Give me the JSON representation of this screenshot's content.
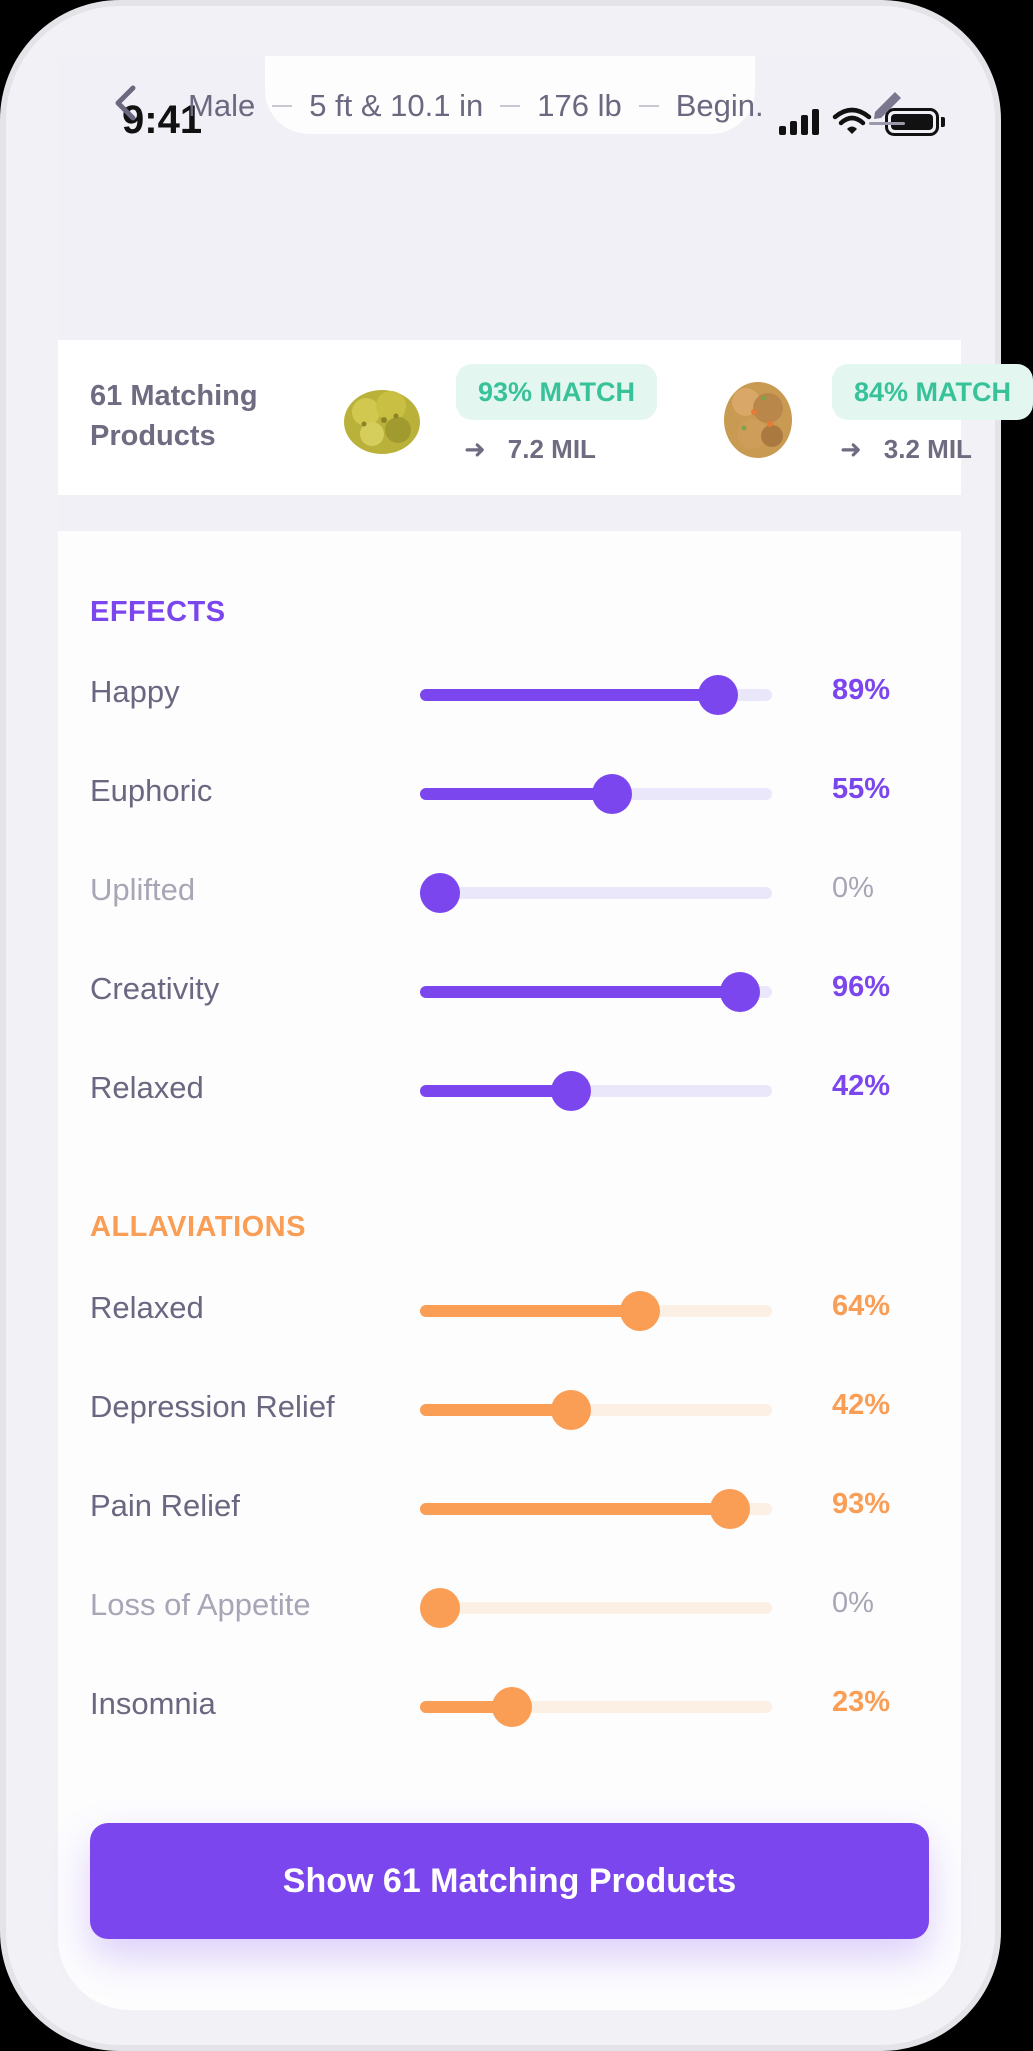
{
  "status_bar": {
    "time": "9:41"
  },
  "header": {
    "profile": [
      "Male",
      "5 ft & 10.1 in",
      "176 lb",
      "Begin."
    ]
  },
  "matches": {
    "label": "61 Matching Products",
    "products": [
      {
        "match": "93% MATCH",
        "distance": "7.2 MIL"
      },
      {
        "match": "84% MATCH",
        "distance": "3.2 MIL"
      }
    ]
  },
  "effects": {
    "title": "EFFECTS",
    "color": "#7b46ee",
    "items": [
      {
        "label": "Happy",
        "value": 89,
        "display": "89%"
      },
      {
        "label": "Euphoric",
        "value": 55,
        "display": "55%"
      },
      {
        "label": "Uplifted",
        "value": 0,
        "display": "0%"
      },
      {
        "label": "Creativity",
        "value": 96,
        "display": "96%"
      },
      {
        "label": "Relaxed",
        "value": 42,
        "display": "42%"
      }
    ]
  },
  "allaviations": {
    "title": "ALLAVIATIONS",
    "color": "#fa9d55",
    "items": [
      {
        "label": "Relaxed",
        "value": 64,
        "display": "64%"
      },
      {
        "label": "Depression Relief",
        "value": 42,
        "display": "42%"
      },
      {
        "label": "Pain Relief",
        "value": 93,
        "display": "93%"
      },
      {
        "label": "Loss of Appetite",
        "value": 0,
        "display": "0%"
      },
      {
        "label": "Insomnia",
        "value": 23,
        "display": "23%"
      }
    ]
  },
  "cta": {
    "label": "Show 61 Matching Products"
  }
}
